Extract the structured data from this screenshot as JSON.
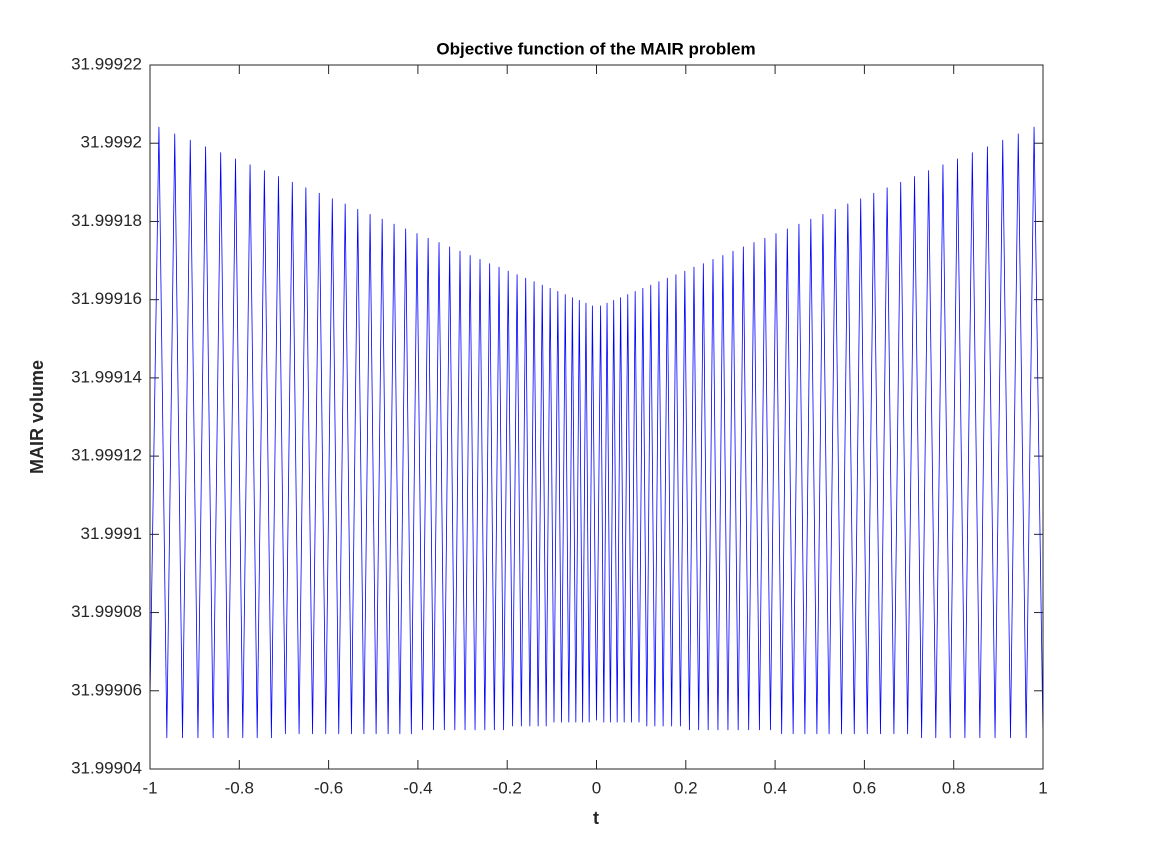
{
  "chart_data": {
    "type": "line",
    "title": "Objective function of the MAIR problem",
    "xlabel": "t",
    "ylabel": "MAIR volume",
    "xlim": [
      -1,
      1
    ],
    "ylim": [
      31.99904,
      31.99922
    ],
    "xticks": [
      -1,
      -0.8,
      -0.6,
      -0.4,
      -0.2,
      0,
      0.2,
      0.4,
      0.6,
      0.8,
      1
    ],
    "yticks": [
      31.99904,
      31.99906,
      31.99908,
      31.9991,
      31.99912,
      31.99914,
      31.99916,
      31.99918,
      31.9992,
      31.99922
    ],
    "grid": false,
    "x": [
      -1,
      -0.98,
      -0.9623,
      -0.9446,
      -0.9272,
      -0.9098,
      -0.8926,
      -0.8755,
      -0.8586,
      -0.8417,
      -0.8251,
      -0.8085,
      -0.7922,
      -0.7759,
      -0.7599,
      -0.7438,
      -0.7281,
      -0.7123,
      -0.6968,
      -0.6813,
      -0.6661,
      -0.6509,
      -0.636,
      -0.621,
      -0.6064,
      -0.5917,
      -0.5773,
      -0.5629,
      -0.5488,
      -0.5347,
      -0.5209,
      -0.5071,
      -0.4936,
      -0.48,
      -0.4667,
      -0.4534,
      -0.4404,
      -0.4274,
      -0.4147,
      -0.402,
      -0.3896,
      -0.3771,
      -0.3649,
      -0.3527,
      -0.3408,
      -0.3289,
      -0.3173,
      -0.3057,
      -0.2944,
      -0.283,
      -0.272,
      -0.2609,
      -0.2501,
      -0.2393,
      -0.2288,
      -0.2183,
      -0.2081,
      -0.1978,
      -0.1879,
      -0.1779,
      -0.1683,
      -0.1586,
      -0.1492,
      -0.1398,
      -0.1307,
      -0.1215,
      -0.1127,
      -0.1038,
      -0.0952,
      -0.0866,
      -0.0783,
      -0.07,
      -0.062,
      -0.054,
      -0.0463,
      -0.0385,
      -0.0311,
      -0.0236,
      -0.0164,
      -0.0092,
      0,
      0.0092,
      0.0164,
      0.0236,
      0.0311,
      0.0385,
      0.0463,
      0.054,
      0.062,
      0.07,
      0.0783,
      0.0866,
      0.0952,
      0.1038,
      0.1127,
      0.1215,
      0.1307,
      0.1398,
      0.1492,
      0.1586,
      0.1683,
      0.1779,
      0.1879,
      0.1978,
      0.2081,
      0.2183,
      0.2288,
      0.2393,
      0.2501,
      0.2609,
      0.272,
      0.283,
      0.2944,
      0.3057,
      0.3173,
      0.3289,
      0.3408,
      0.3527,
      0.3649,
      0.3771,
      0.3896,
      0.402,
      0.4147,
      0.4274,
      0.4404,
      0.4534,
      0.4667,
      0.48,
      0.4936,
      0.5071,
      0.5209,
      0.5347,
      0.5488,
      0.5629,
      0.5773,
      0.5917,
      0.6064,
      0.621,
      0.636,
      0.6509,
      0.6661,
      0.6813,
      0.6968,
      0.7123,
      0.7281,
      0.7438,
      0.7599,
      0.7759,
      0.7922,
      0.8085,
      0.8251,
      0.8417,
      0.8586,
      0.8755,
      0.8926,
      0.9098,
      0.9272,
      0.9446,
      0.9623,
      0.98,
      1
    ],
    "series": [
      {
        "name": "MAIR volume",
        "color": "#0000ff",
        "values": [
          31.9990576,
          31.9992041,
          31.999048,
          31.9992024,
          31.999048,
          31.9992008,
          31.999048,
          31.9991991,
          31.999048,
          31.9991976,
          31.999048,
          31.999196,
          31.999048,
          31.9991945,
          31.999048,
          31.999193,
          31.999048,
          31.9991915,
          31.999049,
          31.99919,
          31.999049,
          31.9991886,
          31.999049,
          31.9991872,
          31.999049,
          31.9991858,
          31.999049,
          31.9991845,
          31.999049,
          31.9991831,
          31.999049,
          31.9991818,
          31.999049,
          31.9991806,
          31.999049,
          31.9991793,
          31.999049,
          31.9991781,
          31.999049,
          31.9991769,
          31.99905,
          31.9991757,
          31.99905,
          31.9991746,
          31.99905,
          31.9991735,
          31.99905,
          31.9991724,
          31.99905,
          31.9991713,
          31.99905,
          31.9991703,
          31.99905,
          31.9991692,
          31.99905,
          31.9991683,
          31.99905,
          31.9991673,
          31.999051,
          31.9991664,
          31.999051,
          31.9991655,
          31.999051,
          31.9991646,
          31.999051,
          31.9991637,
          31.999051,
          31.9991629,
          31.999052,
          31.9991621,
          31.999052,
          31.9991613,
          31.999052,
          31.9991605,
          31.999052,
          31.9991598,
          31.999052,
          31.9991591,
          31.999052,
          31.9991584,
          31.9990525,
          31.9991584,
          31.999052,
          31.9991591,
          31.999052,
          31.9991598,
          31.999052,
          31.9991605,
          31.999052,
          31.9991613,
          31.999052,
          31.9991621,
          31.999052,
          31.9991629,
          31.999051,
          31.9991637,
          31.999051,
          31.9991646,
          31.999051,
          31.9991655,
          31.999051,
          31.9991664,
          31.999051,
          31.9991673,
          31.99905,
          31.9991683,
          31.99905,
          31.9991692,
          31.99905,
          31.9991703,
          31.99905,
          31.9991713,
          31.99905,
          31.9991724,
          31.99905,
          31.9991735,
          31.99905,
          31.9991746,
          31.99905,
          31.9991757,
          31.99905,
          31.9991769,
          31.999049,
          31.9991781,
          31.999049,
          31.9991793,
          31.999049,
          31.9991806,
          31.999049,
          31.9991818,
          31.999049,
          31.9991831,
          31.999049,
          31.9991845,
          31.999049,
          31.9991858,
          31.999049,
          31.9991872,
          31.999049,
          31.9991886,
          31.999049,
          31.99919,
          31.999049,
          31.9991915,
          31.999048,
          31.999193,
          31.999048,
          31.9991945,
          31.999048,
          31.999196,
          31.999048,
          31.9991976,
          31.999048,
          31.9991991,
          31.999048,
          31.9992008,
          31.999048,
          31.9992024,
          31.999048,
          31.9992041,
          31.999048
        ]
      }
    ]
  }
}
